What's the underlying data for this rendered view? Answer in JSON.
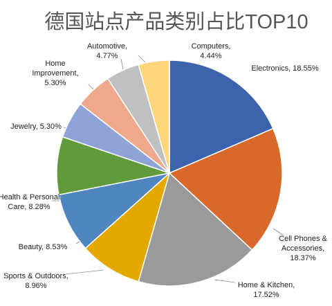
{
  "chart_data": {
    "type": "pie",
    "title": "德国站点产品类别占比TOP10",
    "categories": [
      "Electronics,",
      "Cell Phones & Accessories,",
      "Home & Kitchen,",
      "Sports & Outdoors,",
      "Beauty,",
      "Health & Personal Care,",
      "Jewelry,",
      "Home Improvement,",
      "Automotive,",
      "Computers,"
    ],
    "values": [
      18.55,
      18.37,
      17.52,
      8.96,
      8.53,
      8.28,
      5.3,
      5.3,
      4.77,
      4.44
    ],
    "value_labels": [
      "18.55%",
      "18.37%",
      "17.52%",
      "8.96%",
      "8.53%",
      "8.28%",
      "5.30%",
      "5.30%",
      "4.77%",
      "4.44%"
    ],
    "colors": [
      "#3b64ad",
      "#d9692b",
      "#9a9a9a",
      "#e4a900",
      "#4f86c0",
      "#609a3a",
      "#8fa4d6",
      "#eea98c",
      "#c0c0c0",
      "#ffd57e"
    ]
  }
}
